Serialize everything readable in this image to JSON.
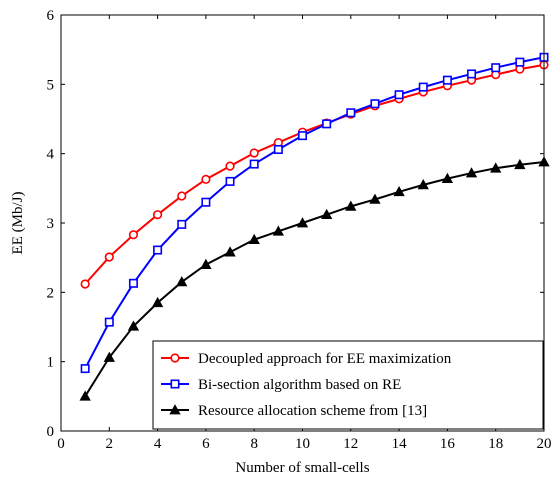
{
  "chart_data": {
    "type": "line",
    "xlabel": "Number of small-cells",
    "ylabel": "EE (Mb/J)",
    "xlim": [
      0,
      20
    ],
    "ylim": [
      0,
      6
    ],
    "xticks": [
      0,
      2,
      4,
      6,
      8,
      10,
      12,
      14,
      16,
      18,
      20
    ],
    "yticks": [
      0,
      1,
      2,
      3,
      4,
      5,
      6
    ],
    "grid": false,
    "legend_position": "bottom-right",
    "x": [
      1,
      2,
      3,
      4,
      5,
      6,
      7,
      8,
      9,
      10,
      11,
      12,
      13,
      14,
      15,
      16,
      17,
      18,
      19,
      20
    ],
    "series": [
      {
        "name": "Decoupled approach for EE maximization",
        "color": "#ff0000",
        "marker": "circle",
        "values": [
          2.12,
          2.51,
          2.83,
          3.12,
          3.39,
          3.63,
          3.82,
          4.01,
          4.16,
          4.31,
          4.44,
          4.57,
          4.69,
          4.79,
          4.89,
          4.98,
          5.06,
          5.14,
          5.22,
          5.28
        ]
      },
      {
        "name": "Bi-section algorithm based on RE",
        "color": "#0000ff",
        "marker": "square",
        "values": [
          0.9,
          1.57,
          2.13,
          2.61,
          2.98,
          3.3,
          3.6,
          3.85,
          4.06,
          4.26,
          4.43,
          4.59,
          4.72,
          4.85,
          4.96,
          5.06,
          5.15,
          5.24,
          5.32,
          5.39
        ]
      },
      {
        "name": "Resource allocation scheme from [13]",
        "color": "#000000",
        "marker": "triangle",
        "values": [
          0.5,
          1.06,
          1.51,
          1.85,
          2.15,
          2.4,
          2.58,
          2.76,
          2.88,
          3.0,
          3.12,
          3.24,
          3.34,
          3.45,
          3.55,
          3.64,
          3.72,
          3.79,
          3.84,
          3.88
        ]
      }
    ]
  }
}
